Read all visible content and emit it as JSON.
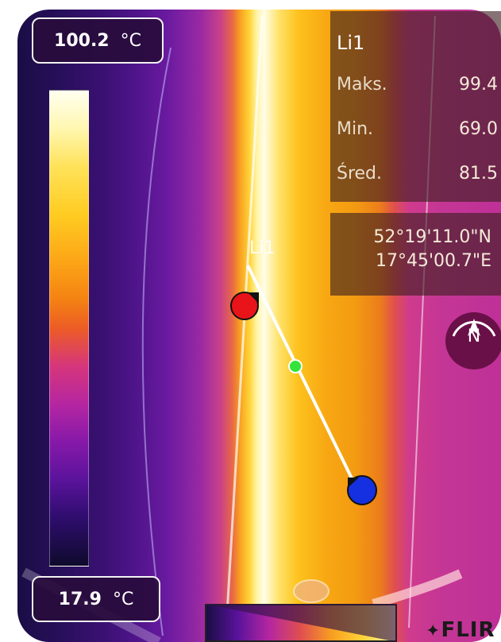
{
  "scale": {
    "max_value": "100.2",
    "max_unit": "°C",
    "min_value": "17.9",
    "min_unit": "°C"
  },
  "measurement": {
    "tool_name": "Li1",
    "line_label": "Li1",
    "rows": [
      {
        "label": "Maks.",
        "value": "99.4"
      },
      {
        "label": "Min.",
        "value": "69.0"
      },
      {
        "label": "Śred.",
        "value": "81.5"
      }
    ]
  },
  "gps": {
    "lat": "52°19'11.0\"N",
    "lon": "17°45'00.7\"E"
  },
  "compass": {
    "label": "N",
    "icon": "compass-icon"
  },
  "brand": {
    "logo_text": "FLIR"
  },
  "colors": {
    "marker_max": "#e8141a",
    "marker_min": "#1530e0",
    "marker_center": "#33e33a",
    "line": "#ffffff"
  }
}
